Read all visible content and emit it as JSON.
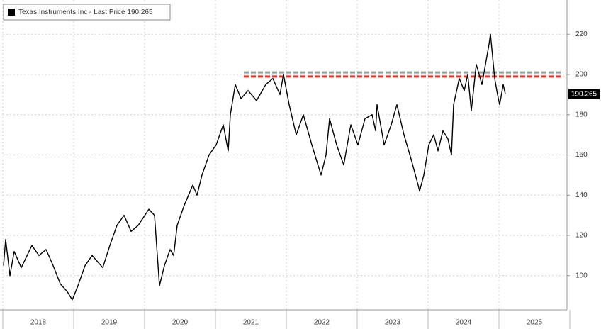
{
  "chart_data": {
    "type": "line",
    "series": [
      {
        "name": "Texas Instruments Inc - Last Price 190.265",
        "color": "#000000",
        "x": [
          2018.01,
          2018.04,
          2018.1,
          2018.16,
          2018.26,
          2018.41,
          2018.51,
          2018.61,
          2018.71,
          2018.81,
          2018.91,
          2018.98,
          2019.06,
          2019.16,
          2019.26,
          2019.41,
          2019.51,
          2019.61,
          2019.71,
          2019.81,
          2019.91,
          2020.06,
          2020.14,
          2020.21,
          2020.28,
          2020.36,
          2020.41,
          2020.46,
          2020.56,
          2020.68,
          2020.74,
          2020.81,
          2020.91,
          2021.01,
          2021.11,
          2021.18,
          2021.21,
          2021.28,
          2021.36,
          2021.46,
          2021.58,
          2021.71,
          2021.81,
          2021.91,
          2021.96,
          2022.04,
          2022.14,
          2022.24,
          2022.36,
          2022.49,
          2022.56,
          2022.61,
          2022.71,
          2022.81,
          2022.91,
          2023.01,
          2023.11,
          2023.21,
          2023.26,
          2023.28,
          2023.38,
          2023.48,
          2023.56,
          2023.66,
          2023.76,
          2023.86,
          2023.88,
          2023.94,
          2024.01,
          2024.08,
          2024.14,
          2024.21,
          2024.28,
          2024.33,
          2024.36,
          2024.44,
          2024.51,
          2024.56,
          2024.61,
          2024.68,
          2024.76,
          2024.86,
          2024.88,
          2024.94,
          2024.98,
          2025.01,
          2025.06,
          2025.09
        ],
        "values": [
          105,
          118,
          100,
          112,
          104,
          115,
          110,
          113,
          105,
          96,
          92,
          88,
          95,
          105,
          110,
          104,
          115,
          125,
          130,
          122,
          125,
          133,
          130,
          95,
          105,
          113,
          110,
          125,
          135,
          145,
          140,
          150,
          160,
          165,
          175,
          162,
          180,
          195,
          188,
          192,
          187,
          195,
          198,
          190,
          200,
          185,
          170,
          180,
          165,
          150,
          160,
          178,
          165,
          155,
          175,
          165,
          178,
          180,
          172,
          185,
          165,
          175,
          185,
          170,
          158,
          145,
          142,
          150,
          165,
          170,
          162,
          172,
          168,
          160,
          185,
          198,
          192,
          200,
          182,
          205,
          195,
          215,
          220,
          198,
          190,
          185,
          195,
          190.265
        ]
      }
    ],
    "hlines": [
      {
        "value": 201,
        "color": "#8fa39e",
        "start": 2021.4
      },
      {
        "value": 199,
        "color": "#e8322c",
        "start": 2021.4
      }
    ],
    "xlim": [
      2018,
      2026
    ],
    "xticks": [
      2018,
      2019,
      2020,
      2021,
      2022,
      2023,
      2024,
      2025,
      2026
    ],
    "year_labels": [
      2018,
      2019,
      2020,
      2021,
      2022,
      2023,
      2024,
      2025
    ],
    "ylim": [
      83,
      237
    ],
    "yticks": [
      100,
      120,
      140,
      160,
      180,
      200,
      220
    ],
    "grid": true
  }
}
